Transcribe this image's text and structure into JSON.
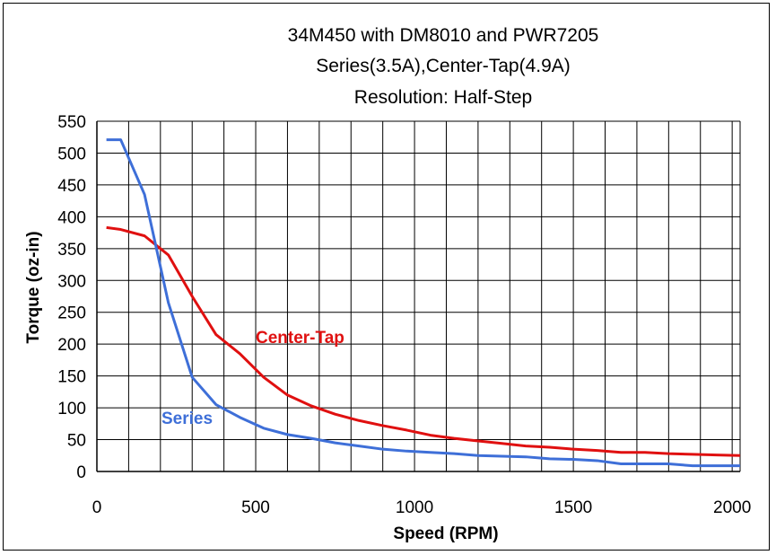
{
  "chart_data": {
    "type": "line",
    "title": [
      "34M450 with DM8010 and PWR7205",
      "Series(3.5A),Center-Tap(4.9A)",
      "Resolution: Half-Step"
    ],
    "xlabel": "Speed (RPM)",
    "ylabel": "Torque (oz-in)",
    "xlim": [
      0,
      2025
    ],
    "ylim": [
      0,
      550
    ],
    "xticks": [
      0,
      500,
      1000,
      1500,
      2000
    ],
    "yticks": [
      0,
      50,
      100,
      150,
      200,
      250,
      300,
      350,
      400,
      450,
      500,
      550
    ],
    "grid": true,
    "series": [
      {
        "name": "Center-Tap",
        "color": "#e01010",
        "x": [
          30,
          75,
          150,
          225,
          300,
          375,
          450,
          525,
          600,
          675,
          750,
          825,
          900,
          975,
          1050,
          1125,
          1200,
          1275,
          1350,
          1425,
          1500,
          1575,
          1650,
          1725,
          1800,
          1875,
          1950,
          2025
        ],
        "y": [
          383,
          380,
          370,
          340,
          275,
          215,
          185,
          148,
          120,
          103,
          90,
          80,
          72,
          65,
          57,
          52,
          48,
          44,
          40,
          38,
          35,
          33,
          30,
          30,
          28,
          27,
          26,
          25
        ]
      },
      {
        "name": "Series",
        "color": "#3e6fd8",
        "x": [
          30,
          75,
          150,
          225,
          300,
          375,
          450,
          525,
          600,
          675,
          750,
          825,
          900,
          975,
          1050,
          1125,
          1200,
          1275,
          1350,
          1425,
          1500,
          1575,
          1650,
          1725,
          1800,
          1875,
          1950,
          2025
        ],
        "y": [
          521,
          521,
          435,
          265,
          148,
          105,
          85,
          68,
          58,
          52,
          45,
          40,
          35,
          32,
          30,
          28,
          25,
          24,
          23,
          20,
          19,
          17,
          12,
          12,
          12,
          9,
          9,
          9
        ]
      }
    ]
  }
}
